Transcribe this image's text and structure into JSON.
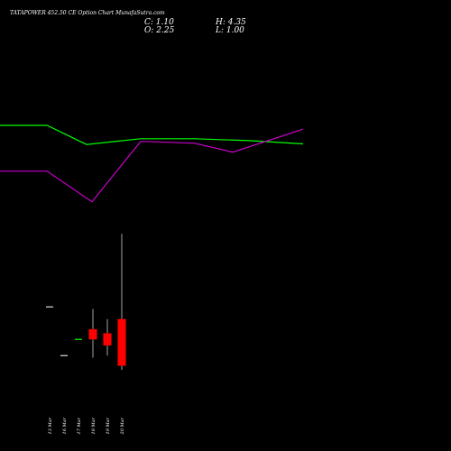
{
  "header": {
    "title": "TATAPOWER 452.50 CE Option Chart MunafaSutra.com",
    "close_label": "C: 1.10",
    "high_label": "H: 4.35",
    "open_label": "O: 2.25",
    "low_label": "L: 1.00"
  },
  "colors": {
    "background": "#000000",
    "text": "#ffffff",
    "green_line": "#00ff00",
    "magenta_line": "#cc00cc",
    "bear_candle": "#ff0000",
    "bull_candle": "#00ff00",
    "doji_candle": "#e0e0e0",
    "wick": "#cccccc"
  },
  "chart_data": {
    "type": "candlestick",
    "title": "TATAPOWER 452.50 CE Option Chart MunafaSutra.com",
    "categories": [
      "13 Mar",
      "16 Mar",
      "17 Mar",
      "18 Mar",
      "19 Mar",
      "20 Mar"
    ],
    "candles": [
      {
        "date": "13 Mar",
        "open": 2.55,
        "high": 2.55,
        "low": 2.55,
        "close": 2.55,
        "color": "doji"
      },
      {
        "date": "16 Mar",
        "open": 1.35,
        "high": 1.35,
        "low": 1.35,
        "close": 1.35,
        "color": "doji"
      },
      {
        "date": "17 Mar",
        "open": 1.75,
        "high": 1.75,
        "low": 1.75,
        "close": 1.75,
        "color": "bull"
      },
      {
        "date": "18 Mar",
        "open": 2.0,
        "high": 2.5,
        "low": 1.3,
        "close": 1.75,
        "color": "bear"
      },
      {
        "date": "19 Mar",
        "open": 1.9,
        "high": 2.25,
        "low": 1.35,
        "close": 1.6,
        "color": "bear"
      },
      {
        "date": "20 Mar",
        "open": 2.25,
        "high": 4.35,
        "low": 1.0,
        "close": 1.1,
        "color": "bear"
      }
    ],
    "overlay_lines": [
      {
        "color": "green",
        "x": [
          0,
          0.87,
          1.6,
          2.6,
          3.6,
          4.6,
          5.6
        ],
        "y": [
          1.92,
          1.92,
          1.62,
          1.71,
          1.71,
          1.68,
          1.63
        ]
      },
      {
        "color": "magenta",
        "x": [
          0,
          0.87,
          1.7,
          2.6,
          3.6,
          4.3,
          5.6
        ],
        "y": [
          1.2,
          1.2,
          0.72,
          1.67,
          1.64,
          1.5,
          1.86
        ]
      }
    ],
    "price_range": [
      1.0,
      4.35
    ],
    "grid": false
  }
}
